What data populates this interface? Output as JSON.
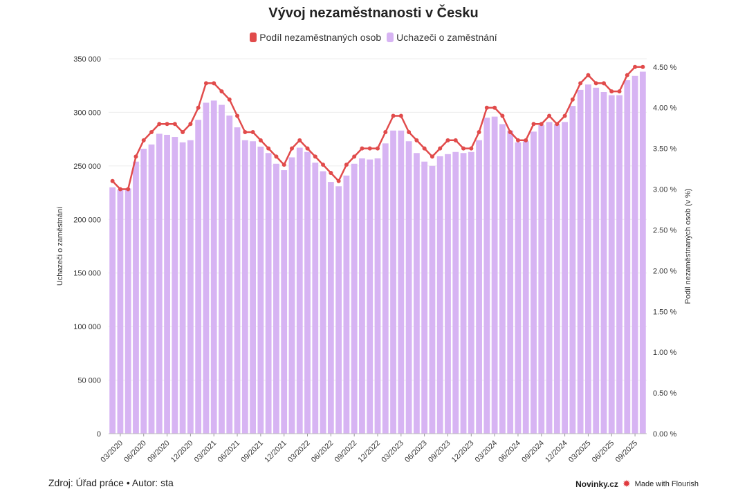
{
  "colors": {
    "bars": "#d7b4f3",
    "line": "#e14b4b",
    "grid": "#ececec",
    "axis_text": "#333333"
  },
  "footer": {
    "source": "Zdroj: Úřad práce • Autor: sta",
    "brand": "Novinky.cz",
    "flourish_icon": "✹",
    "flourish": "Made with Flourish"
  },
  "chart_data": {
    "type": "bar",
    "title": "Vývoj nezaměstnanosti v Česku",
    "legend": [
      "Podíl nezaměstnaných osob",
      "Uchazeči o zaměstnání"
    ],
    "legend_position": "top-center",
    "grid": true,
    "x_tick_labels": [
      "03/2020",
      "06/2020",
      "09/2020",
      "12/2020",
      "03/2021",
      "06/2021",
      "09/2021",
      "12/2021",
      "03/2022",
      "06/2022",
      "09/2022",
      "12/2022",
      "03/2023",
      "06/2023",
      "09/2023",
      "12/2023",
      "03/2024",
      "06/2024",
      "09/2024",
      "12/2024",
      "03/2025",
      "06/2025",
      "09/2025"
    ],
    "first_tick_index": 1,
    "x_tick_step": 3,
    "y_left": {
      "label": "Uchazeči o zaměstnání",
      "ylim": [
        0,
        350000
      ],
      "ticks": [
        0,
        50000,
        100000,
        150000,
        200000,
        250000,
        300000,
        350000
      ],
      "tick_labels": [
        "0",
        "50 000",
        "100 000",
        "150 000",
        "200 000",
        "250 000",
        "300 000",
        "350 000"
      ]
    },
    "y_right": {
      "label": "Podíl nezaměstnaných osob (v %)",
      "ylim": [
        0,
        4.6
      ],
      "ticks": [
        0,
        0.5,
        1,
        1.5,
        2,
        2.5,
        3,
        3.5,
        4,
        4.5
      ],
      "tick_labels": [
        "0.00 %",
        "0.50 %",
        "1.00 %",
        "1.50 %",
        "2.00 %",
        "2.50 %",
        "3.00 %",
        "3.50 %",
        "4.00 %",
        "4.50 %"
      ]
    },
    "series": [
      {
        "name": "Uchazeči o zaměstnání",
        "type": "bar",
        "axis": "left",
        "values": [
          230000,
          228000,
          229000,
          254000,
          266000,
          270000,
          280000,
          279000,
          277000,
          272000,
          274000,
          293000,
          309000,
          311000,
          307000,
          297000,
          286000,
          274000,
          273000,
          268000,
          262000,
          252000,
          246000,
          258000,
          267000,
          263000,
          253000,
          245000,
          235000,
          231000,
          241000,
          252000,
          257000,
          256000,
          257000,
          271000,
          283000,
          283000,
          273000,
          262000,
          254000,
          250000,
          259000,
          261000,
          263000,
          262000,
          263000,
          274000,
          295000,
          296000,
          289000,
          283000,
          272000,
          273000,
          282000,
          288000,
          291000,
          289000,
          291000,
          306000,
          321000,
          326000,
          323000,
          319000,
          316000,
          316000,
          330000,
          334000,
          338000
        ]
      },
      {
        "name": "Podíl nezaměstnaných osob",
        "type": "line",
        "axis": "right",
        "values": [
          3.1,
          3.0,
          3.0,
          3.4,
          3.6,
          3.7,
          3.8,
          3.8,
          3.8,
          3.7,
          3.8,
          4.0,
          4.3,
          4.3,
          4.2,
          4.1,
          3.9,
          3.7,
          3.7,
          3.6,
          3.5,
          3.4,
          3.3,
          3.5,
          3.6,
          3.5,
          3.4,
          3.3,
          3.2,
          3.1,
          3.3,
          3.4,
          3.5,
          3.5,
          3.5,
          3.7,
          3.9,
          3.9,
          3.7,
          3.6,
          3.5,
          3.4,
          3.5,
          3.6,
          3.6,
          3.5,
          3.5,
          3.7,
          4.0,
          4.0,
          3.9,
          3.7,
          3.6,
          3.6,
          3.8,
          3.8,
          3.9,
          3.8,
          3.9,
          4.1,
          4.3,
          4.4,
          4.3,
          4.3,
          4.2,
          4.2,
          4.4,
          4.5,
          4.5
        ]
      }
    ]
  }
}
